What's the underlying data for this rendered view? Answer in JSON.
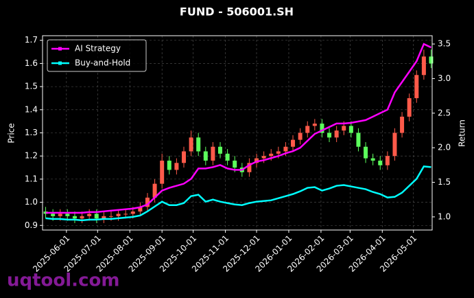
{
  "chart_data": {
    "type": "candlestick",
    "title": "FUND - 506001.SH",
    "y_label": "Price",
    "y2_label": "Return",
    "watermark": "uqtool.com",
    "x": [
      "2025-05-12",
      "2025-05-19",
      "2025-05-26",
      "2025-06-02",
      "2025-06-09",
      "2025-06-16",
      "2025-06-23",
      "2025-06-30",
      "2025-07-07",
      "2025-07-14",
      "2025-07-21",
      "2025-07-28",
      "2025-08-04",
      "2025-08-11",
      "2025-08-18",
      "2025-08-25",
      "2025-09-01",
      "2025-09-08",
      "2025-09-15",
      "2025-09-22",
      "2025-09-29",
      "2025-10-06",
      "2025-10-13",
      "2025-10-20",
      "2025-10-27",
      "2025-11-03",
      "2025-11-10",
      "2025-11-17",
      "2025-11-24",
      "2025-12-01",
      "2025-12-08",
      "2025-12-15",
      "2025-12-22",
      "2025-12-29",
      "2026-01-05",
      "2026-01-12",
      "2026-01-19",
      "2026-01-26",
      "2026-02-02",
      "2026-02-09",
      "2026-02-16",
      "2026-02-23",
      "2026-03-02",
      "2026-03-09",
      "2026-03-16",
      "2026-03-23",
      "2026-03-30",
      "2026-04-06",
      "2026-04-13",
      "2026-04-20",
      "2026-04-27",
      "2026-05-04",
      "2026-05-11",
      "2026-05-18"
    ],
    "open": [
      0.96,
      0.95,
      0.94,
      0.95,
      0.94,
      0.93,
      0.94,
      0.95,
      0.93,
      0.94,
      0.94,
      0.95,
      0.95,
      0.96,
      0.98,
      1.02,
      1.08,
      1.18,
      1.14,
      1.17,
      1.22,
      1.28,
      1.22,
      1.18,
      1.24,
      1.21,
      1.18,
      1.15,
      1.13,
      1.17,
      1.19,
      1.2,
      1.21,
      1.22,
      1.24,
      1.27,
      1.3,
      1.33,
      1.34,
      1.3,
      1.28,
      1.31,
      1.33,
      1.3,
      1.24,
      1.19,
      1.18,
      1.16,
      1.2,
      1.3,
      1.37,
      1.45,
      1.55,
      1.63
    ],
    "high": [
      0.98,
      0.97,
      0.97,
      0.97,
      0.96,
      0.96,
      0.97,
      0.97,
      0.96,
      0.96,
      0.97,
      0.97,
      0.98,
      1.0,
      1.04,
      1.1,
      1.21,
      1.2,
      1.19,
      1.24,
      1.31,
      1.3,
      1.24,
      1.26,
      1.26,
      1.23,
      1.2,
      1.17,
      1.19,
      1.21,
      1.22,
      1.23,
      1.24,
      1.26,
      1.29,
      1.32,
      1.35,
      1.36,
      1.36,
      1.32,
      1.33,
      1.35,
      1.35,
      1.32,
      1.26,
      1.21,
      1.2,
      1.22,
      1.32,
      1.39,
      1.47,
      1.57,
      1.66,
      1.66
    ],
    "low": [
      0.93,
      0.92,
      0.92,
      0.92,
      0.91,
      0.91,
      0.92,
      0.91,
      0.91,
      0.92,
      0.92,
      0.93,
      0.93,
      0.94,
      0.96,
      1.0,
      1.06,
      1.12,
      1.12,
      1.15,
      1.2,
      1.2,
      1.16,
      1.16,
      1.19,
      1.16,
      1.13,
      1.11,
      1.11,
      1.15,
      1.17,
      1.18,
      1.19,
      1.2,
      1.22,
      1.25,
      1.28,
      1.31,
      1.28,
      1.26,
      1.26,
      1.29,
      1.28,
      1.22,
      1.17,
      1.16,
      1.14,
      1.14,
      1.18,
      1.28,
      1.35,
      1.43,
      1.53,
      1.58
    ],
    "close": [
      0.95,
      0.94,
      0.95,
      0.94,
      0.93,
      0.94,
      0.95,
      0.93,
      0.94,
      0.94,
      0.95,
      0.95,
      0.96,
      0.98,
      1.02,
      1.08,
      1.18,
      1.14,
      1.17,
      1.22,
      1.28,
      1.22,
      1.18,
      1.24,
      1.21,
      1.18,
      1.15,
      1.13,
      1.17,
      1.19,
      1.2,
      1.21,
      1.22,
      1.24,
      1.27,
      1.3,
      1.33,
      1.34,
      1.3,
      1.28,
      1.31,
      1.33,
      1.3,
      1.24,
      1.19,
      1.18,
      1.16,
      1.2,
      1.3,
      1.37,
      1.45,
      1.55,
      1.63,
      1.6
    ],
    "up_color": "#ff5a4a",
    "down_color": "#5cff5c",
    "series": [
      {
        "name": "AI Strategy",
        "color": "#ff00ff",
        "axis": "y2",
        "values": [
          1.06,
          1.06,
          1.06,
          1.06,
          1.06,
          1.06,
          1.07,
          1.07,
          1.08,
          1.09,
          1.1,
          1.11,
          1.12,
          1.14,
          1.18,
          1.28,
          1.38,
          1.42,
          1.45,
          1.48,
          1.55,
          1.7,
          1.7,
          1.72,
          1.75,
          1.7,
          1.68,
          1.68,
          1.75,
          1.8,
          1.82,
          1.85,
          1.88,
          1.92,
          1.95,
          2.0,
          2.1,
          2.2,
          2.25,
          2.3,
          2.35,
          2.35,
          2.36,
          2.38,
          2.4,
          2.45,
          2.5,
          2.55,
          2.8,
          2.95,
          3.1,
          3.25,
          3.5,
          3.45
        ]
      },
      {
        "name": "Buy-and-Hold",
        "color": "#00ffff",
        "axis": "y2",
        "values": [
          0.98,
          0.97,
          0.97,
          0.96,
          0.96,
          0.95,
          0.96,
          0.96,
          0.97,
          0.97,
          0.98,
          0.99,
          1.0,
          1.02,
          1.08,
          1.15,
          1.22,
          1.17,
          1.17,
          1.2,
          1.3,
          1.32,
          1.22,
          1.25,
          1.22,
          1.2,
          1.18,
          1.17,
          1.2,
          1.22,
          1.23,
          1.24,
          1.27,
          1.3,
          1.33,
          1.37,
          1.42,
          1.43,
          1.38,
          1.41,
          1.45,
          1.46,
          1.44,
          1.42,
          1.4,
          1.36,
          1.33,
          1.28,
          1.29,
          1.35,
          1.45,
          1.55,
          1.73,
          1.72
        ]
      }
    ],
    "xlim": [
      "2025-05-09",
      "2026-05-19"
    ],
    "xticks": [
      "2025-06-01",
      "2025-07-01",
      "2025-08-01",
      "2025-09-01",
      "2025-10-01",
      "2025-11-01",
      "2025-12-01",
      "2026-01-01",
      "2026-02-01",
      "2026-03-01",
      "2026-04-01",
      "2026-05-01"
    ],
    "ylim": [
      0.88,
      1.72
    ],
    "yticks": [
      0.9,
      {
        "value": 1,
        "label": "1.0"
      },
      1.1,
      1.2,
      1.3,
      1.4,
      1.5,
      1.6,
      1.7
    ],
    "y2lim": [
      0.81,
      3.62
    ],
    "y2ticks": [
      {
        "value": 1,
        "label": "1.0"
      },
      1.5,
      {
        "value": 2,
        "label": "2.0"
      },
      2.5,
      {
        "value": 3,
        "label": "3.0"
      },
      3.5
    ],
    "grid": true,
    "legend": "upper left"
  }
}
